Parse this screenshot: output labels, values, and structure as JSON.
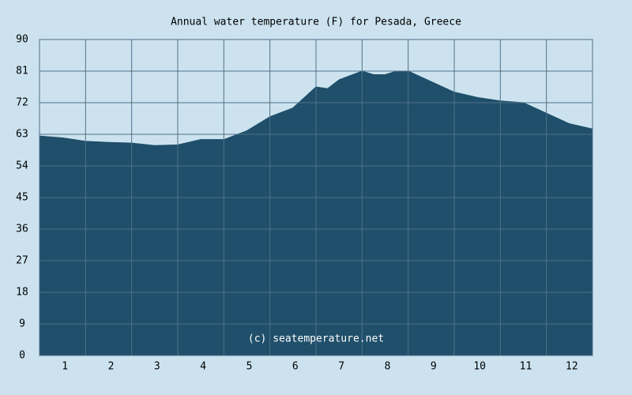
{
  "chart_data": {
    "type": "area",
    "title": "Annual water temperature (F) for Pesada, Greece",
    "annotation": "(c) seatemperature.net",
    "x": [
      0.5,
      1,
      1.5,
      2,
      2.5,
      3,
      3.5,
      4,
      4.5,
      5,
      5.5,
      6,
      6.5,
      6.75,
      7,
      7.5,
      7.75,
      8,
      8.25,
      8.5,
      9,
      9.5,
      10,
      10.5,
      11,
      11.5,
      12,
      12.5
    ],
    "values": [
      62.5,
      62,
      61,
      60.7,
      60.5,
      59.8,
      60,
      61.5,
      61.5,
      64,
      68,
      70.5,
      76.5,
      76,
      78.5,
      81,
      80,
      80,
      81,
      81,
      78,
      75,
      73.5,
      72.5,
      72,
      69,
      66,
      64.5
    ],
    "color": "#1f4f6a",
    "xlim": [
      0.5,
      12.5
    ],
    "xticks": [
      1,
      2,
      3,
      4,
      5,
      6,
      7,
      8,
      9,
      10,
      11,
      12
    ],
    "ylim": [
      0,
      90
    ],
    "yticks": [
      0,
      9,
      18,
      27,
      36,
      45,
      54,
      63,
      72,
      81,
      90
    ],
    "grid": true
  }
}
